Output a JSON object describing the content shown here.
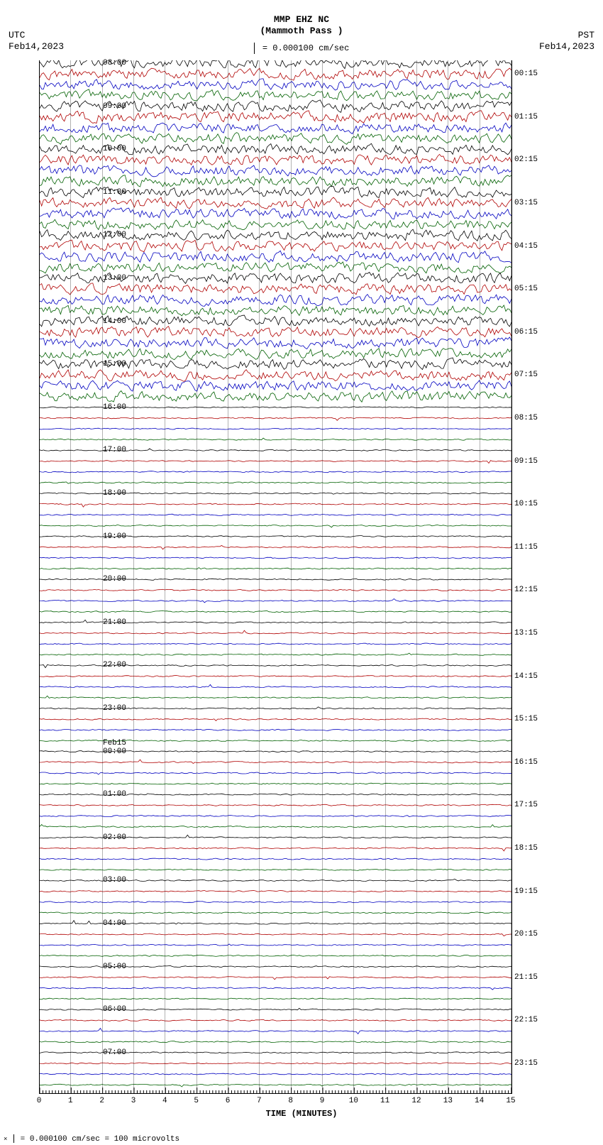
{
  "header": {
    "station_code": "MMP EHZ NC",
    "station_name": "(Mammoth Pass )",
    "scale_text": "= 0.000100 cm/sec"
  },
  "timezones": {
    "left_tz": "UTC",
    "left_date": "Feb14,2023",
    "right_tz": "PST",
    "right_date": "Feb14,2023"
  },
  "axis": {
    "x_label": "TIME (MINUTES)",
    "x_min": 0,
    "x_max": 15,
    "x_tick_step": 1,
    "x_ticks": [
      "0",
      "1",
      "2",
      "3",
      "4",
      "5",
      "6",
      "7",
      "8",
      "9",
      "10",
      "11",
      "12",
      "13",
      "14",
      "15"
    ]
  },
  "footer": "= 0.000100 cm/sec =    100 microvolts",
  "trace": {
    "colors": [
      "#000000",
      "#b00000",
      "#0000c0",
      "#006000"
    ],
    "num_traces": 96,
    "row_spacing_px": 15.15,
    "amplitude_transition_index": 32,
    "high_amplitude": 12,
    "low_amplitude": 1.5,
    "samples_per_trace": 250
  },
  "y_labels_left": [
    {
      "text": "08:00",
      "idx": 0
    },
    {
      "text": "09:00",
      "idx": 4
    },
    {
      "text": "10:00",
      "idx": 8
    },
    {
      "text": "11:00",
      "idx": 12
    },
    {
      "text": "12:00",
      "idx": 16
    },
    {
      "text": "13:00",
      "idx": 20
    },
    {
      "text": "14:00",
      "idx": 24
    },
    {
      "text": "15:00",
      "idx": 28
    },
    {
      "text": "16:00",
      "idx": 32
    },
    {
      "text": "17:00",
      "idx": 36
    },
    {
      "text": "18:00",
      "idx": 40
    },
    {
      "text": "19:00",
      "idx": 44
    },
    {
      "text": "20:00",
      "idx": 48
    },
    {
      "text": "21:00",
      "idx": 52
    },
    {
      "text": "22:00",
      "idx": 56
    },
    {
      "text": "23:00",
      "idx": 60
    },
    {
      "text": "01:00",
      "idx": 68
    },
    {
      "text": "02:00",
      "idx": 72
    },
    {
      "text": "03:00",
      "idx": 76
    },
    {
      "text": "04:00",
      "idx": 80
    },
    {
      "text": "05:00",
      "idx": 84
    },
    {
      "text": "06:00",
      "idx": 88
    },
    {
      "text": "07:00",
      "idx": 92
    }
  ],
  "midnight_label": {
    "line1": "Feb15",
    "line2": "00:00",
    "idx": 64
  },
  "y_labels_right": [
    {
      "text": "00:15",
      "idx": 1
    },
    {
      "text": "01:15",
      "idx": 5
    },
    {
      "text": "02:15",
      "idx": 9
    },
    {
      "text": "03:15",
      "idx": 13
    },
    {
      "text": "04:15",
      "idx": 17
    },
    {
      "text": "05:15",
      "idx": 21
    },
    {
      "text": "06:15",
      "idx": 25
    },
    {
      "text": "07:15",
      "idx": 29
    },
    {
      "text": "08:15",
      "idx": 33
    },
    {
      "text": "09:15",
      "idx": 37
    },
    {
      "text": "10:15",
      "idx": 41
    },
    {
      "text": "11:15",
      "idx": 45
    },
    {
      "text": "12:15",
      "idx": 49
    },
    {
      "text": "13:15",
      "idx": 53
    },
    {
      "text": "14:15",
      "idx": 57
    },
    {
      "text": "15:15",
      "idx": 61
    },
    {
      "text": "16:15",
      "idx": 65
    },
    {
      "text": "17:15",
      "idx": 69
    },
    {
      "text": "18:15",
      "idx": 73
    },
    {
      "text": "19:15",
      "idx": 77
    },
    {
      "text": "20:15",
      "idx": 81
    },
    {
      "text": "21:15",
      "idx": 85
    },
    {
      "text": "22:15",
      "idx": 89
    },
    {
      "text": "23:15",
      "idx": 93
    }
  ]
}
